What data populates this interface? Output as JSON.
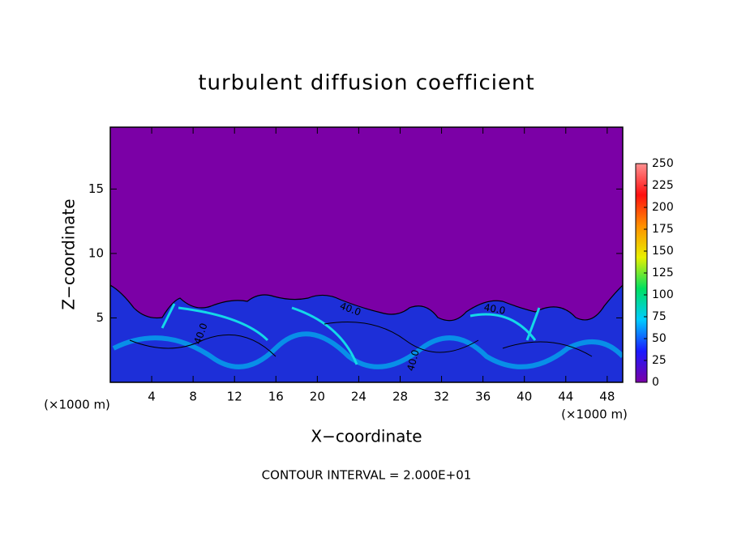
{
  "chart_data": {
    "type": "contour",
    "title": "turbulent diffusion coefficient",
    "x_label": "X−coordinate",
    "y_label": "Z−coordinate",
    "x_unit_left": "(×1000 m)",
    "x_unit_right": "(×1000 m)",
    "annotation": "CONTOUR INTERVAL = 2.000E+01",
    "contour_labels": [
      "40.0",
      "40.0",
      "40.0",
      "40.0"
    ],
    "xlim": [
      0,
      49.5
    ],
    "xticks": [
      4,
      8,
      12,
      16,
      20,
      24,
      28,
      32,
      36,
      40,
      44,
      48
    ],
    "ylim": [
      0,
      19.8
    ],
    "yticks": [
      5,
      10,
      15
    ],
    "background_color": "#7b00a6",
    "colorbar": {
      "lim": [
        0,
        250
      ],
      "ticks": [
        0,
        25,
        50,
        75,
        100,
        125,
        150,
        175,
        200,
        225,
        250
      ],
      "colors": [
        "#7b00a6",
        "#1a1aff",
        "#00ccff",
        "#00e060",
        "#e8f000",
        "#ff9000",
        "#ff1010",
        "#ff9090"
      ]
    }
  }
}
